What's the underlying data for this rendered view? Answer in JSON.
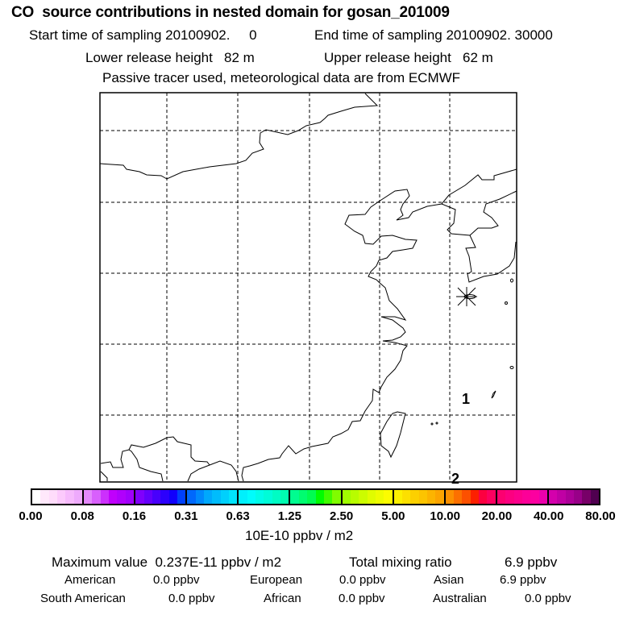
{
  "header": {
    "title": "CO  source contributions in nested domain for gosan_201009",
    "start_label": "Start time of sampling 20100902.     0",
    "end_label": "End time of sampling 20100902. 30000",
    "lower_label": "Lower release height   82 m",
    "upper_label": "Upper release height   62 m",
    "tracer_note": "Passive tracer used, meteorological data are from ECMWF"
  },
  "map": {
    "markers": [
      {
        "label": "1"
      },
      {
        "label": "2"
      }
    ],
    "receptor_icon": "asterisk-star"
  },
  "colorbar": {
    "ticks": [
      "0.00",
      "0.08",
      "0.16",
      "0.31",
      "0.63",
      "1.25",
      "2.50",
      "5.00",
      "10.00",
      "20.00",
      "40.00",
      "80.00"
    ],
    "unit": "10E-10 ppbv / m2",
    "colors": [
      [
        "#ffffff",
        "#ffe8fb",
        "#ffdcfb",
        "#fccafc",
        "#f6bafc",
        "#eeaafc"
      ],
      [
        "#e488fc",
        "#d860fc",
        "#cc30fc",
        "#c000fc",
        "#b000fc",
        "#a000fc"
      ],
      [
        "#8000fc",
        "#6400fc",
        "#4800fc",
        "#2c00fc",
        "#1000fc",
        "#0040fc"
      ],
      [
        "#0068fc",
        "#0088fc",
        "#00a8fc",
        "#00bcfc",
        "#00d0fc",
        "#00e4fc"
      ],
      [
        "#00f0fc",
        "#00fcfc",
        "#00fce8",
        "#00fcd8",
        "#00fcc4",
        "#00fcb0"
      ],
      [
        "#00fc90",
        "#00fc70",
        "#00fc50",
        "#00fc00",
        "#40fc00",
        "#80fc00"
      ],
      [
        "#a0fc00",
        "#b8fc00",
        "#ccfc00",
        "#e0fc00",
        "#eefc00",
        "#fcfc00"
      ],
      [
        "#fcf000",
        "#fce000",
        "#fcd000",
        "#fcc400",
        "#fcb400",
        "#fca400"
      ],
      [
        "#fc9000",
        "#fc7000",
        "#fc5000",
        "#fc2000",
        "#fc0040",
        "#fc0060"
      ],
      [
        "#fc0070",
        "#fc0080",
        "#fc008c",
        "#fc0098",
        "#fc00a0",
        "#ec00ac"
      ],
      [
        "#d400ac",
        "#c000a4",
        "#ac0098",
        "#980088",
        "#780068",
        "#500050"
      ]
    ]
  },
  "summary": {
    "max_label": "Maximum value  0.237E-11 ppbv / m2",
    "total_label": "Total mixing ratio",
    "total_value": "6.9 ppbv",
    "regions": [
      {
        "name": "American",
        "value": "0.0 ppbv"
      },
      {
        "name": "European",
        "value": "0.0 ppbv"
      },
      {
        "name": "Asian",
        "value": "6.9 ppbv"
      },
      {
        "name": "South American",
        "value": "0.0 ppbv"
      },
      {
        "name": "African",
        "value": "0.0 ppbv"
      },
      {
        "name": "Australian",
        "value": "0.0 ppbv"
      }
    ]
  }
}
